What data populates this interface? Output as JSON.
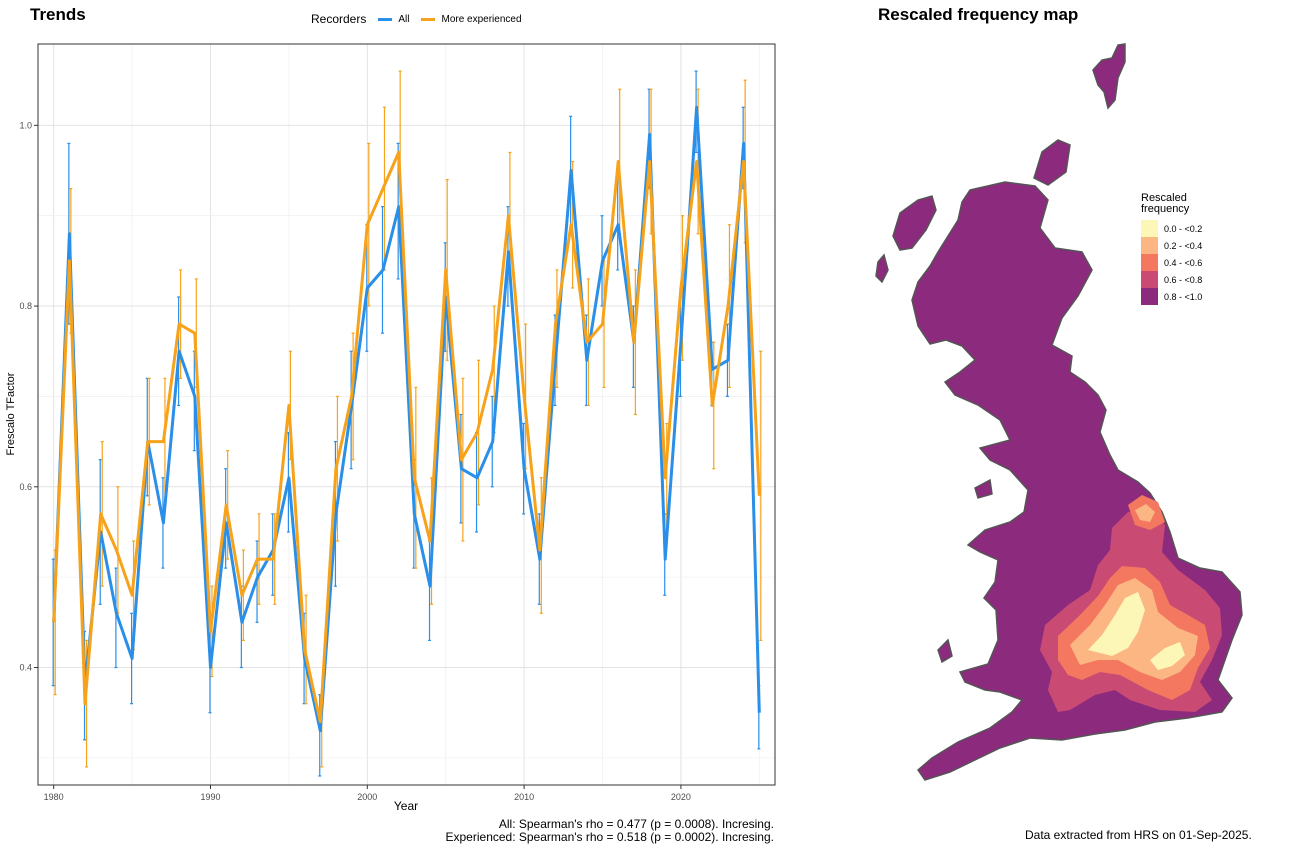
{
  "trends": {
    "title": "Trends",
    "legend_title": "Recorders",
    "caption_lines": [
      "All: Spearman's rho = 0.477 (p = 0.0008). Incresing.",
      "Experienced: Spearman's rho = 0.518 (p = 0.0002). Incresing."
    ]
  },
  "map": {
    "title": "Rescaled frequency map",
    "legend_title_lines": [
      "Rescaled",
      "frequency"
    ],
    "legend_items": [
      {
        "label": "0.0 - <0.2",
        "color": "#fcf7b6"
      },
      {
        "label": "0.2 - <0.4",
        "color": "#fcb683"
      },
      {
        "label": "0.4 - <0.6",
        "color": "#f4785f"
      },
      {
        "label": "0.6 - <0.8",
        "color": "#c94a73"
      },
      {
        "label": "0.8 - <1.0",
        "color": "#8c2a7e"
      }
    ],
    "footer": "Data extracted from HRS on 01-Sep-2025."
  },
  "chart_data": {
    "type": "line",
    "title": "Trends",
    "xlabel": "Year",
    "ylabel": "Frescalo TFactor",
    "xlim": [
      1979,
      2026
    ],
    "ylim": [
      0.27,
      1.09
    ],
    "x_ticks": [
      1980,
      1990,
      2000,
      2010,
      2020
    ],
    "y_ticks": [
      0.4,
      0.6,
      0.8,
      1.0
    ],
    "y_tick_labels": [
      "0.4",
      "0.6",
      "0.8",
      "1.0"
    ],
    "grid": true,
    "legend_position": "top",
    "series": [
      {
        "name": "All",
        "color": "#2a8fe8",
        "x": [
          1980,
          1981,
          1982,
          1983,
          1984,
          1985,
          1986,
          1987,
          1988,
          1989,
          1990,
          1991,
          1992,
          1993,
          1994,
          1995,
          1996,
          1997,
          1998,
          1999,
          2000,
          2001,
          2002,
          2003,
          2004,
          2005,
          2006,
          2007,
          2008,
          2009,
          2010,
          2011,
          2012,
          2013,
          2014,
          2015,
          2016,
          2017,
          2018,
          2019,
          2020,
          2021,
          2022,
          2023,
          2024,
          2025
        ],
        "values": [
          0.45,
          0.88,
          0.38,
          0.55,
          0.46,
          0.41,
          0.65,
          0.56,
          0.75,
          0.7,
          0.4,
          0.56,
          0.45,
          0.5,
          0.53,
          0.61,
          0.41,
          0.33,
          0.57,
          0.69,
          0.82,
          0.84,
          0.91,
          0.57,
          0.49,
          0.81,
          0.62,
          0.61,
          0.65,
          0.86,
          0.62,
          0.52,
          0.74,
          0.95,
          0.74,
          0.85,
          0.89,
          0.76,
          0.99,
          0.52,
          0.76,
          1.02,
          0.73,
          0.74,
          0.98,
          0.35
        ],
        "upper": [
          0.52,
          0.98,
          0.44,
          0.63,
          0.51,
          0.46,
          0.72,
          0.61,
          0.81,
          0.75,
          0.45,
          0.62,
          0.49,
          0.54,
          0.57,
          0.66,
          0.46,
          0.37,
          0.65,
          0.75,
          0.89,
          0.91,
          0.98,
          0.63,
          0.54,
          0.87,
          0.68,
          0.66,
          0.7,
          0.91,
          0.67,
          0.57,
          0.79,
          1.01,
          0.79,
          0.9,
          0.94,
          0.8,
          1.04,
          0.57,
          0.81,
          1.06,
          0.76,
          0.78,
          1.02,
          0.38
        ],
        "lower": [
          0.38,
          0.78,
          0.32,
          0.47,
          0.4,
          0.36,
          0.59,
          0.51,
          0.69,
          0.64,
          0.35,
          0.51,
          0.4,
          0.45,
          0.48,
          0.55,
          0.36,
          0.28,
          0.49,
          0.62,
          0.75,
          0.77,
          0.83,
          0.51,
          0.43,
          0.75,
          0.56,
          0.55,
          0.6,
          0.8,
          0.57,
          0.47,
          0.69,
          0.88,
          0.69,
          0.8,
          0.84,
          0.71,
          0.93,
          0.48,
          0.7,
          0.97,
          0.69,
          0.7,
          0.93,
          0.31
        ]
      },
      {
        "name": "More experienced",
        "color": "#f7a21b",
        "x": [
          1980,
          1981,
          1982,
          1983,
          1984,
          1985,
          1986,
          1987,
          1988,
          1989,
          1990,
          1991,
          1992,
          1993,
          1994,
          1995,
          1996,
          1997,
          1998,
          1999,
          2000,
          2001,
          2002,
          2003,
          2004,
          2005,
          2006,
          2007,
          2008,
          2009,
          2010,
          2011,
          2012,
          2013,
          2014,
          2015,
          2016,
          2017,
          2018,
          2019,
          2020,
          2021,
          2022,
          2023,
          2024,
          2025
        ],
        "values": [
          0.45,
          0.85,
          0.36,
          0.57,
          0.53,
          0.48,
          0.65,
          0.65,
          0.78,
          0.77,
          0.44,
          0.58,
          0.48,
          0.52,
          0.52,
          0.69,
          0.42,
          0.34,
          0.62,
          0.7,
          0.89,
          0.93,
          0.97,
          0.61,
          0.54,
          0.84,
          0.63,
          0.66,
          0.73,
          0.9,
          0.7,
          0.53,
          0.78,
          0.89,
          0.76,
          0.78,
          0.96,
          0.76,
          0.96,
          0.61,
          0.82,
          0.96,
          0.69,
          0.8,
          0.96,
          0.59
        ],
        "upper": [
          0.53,
          0.93,
          0.43,
          0.65,
          0.6,
          0.54,
          0.72,
          0.72,
          0.84,
          0.83,
          0.49,
          0.64,
          0.53,
          0.57,
          0.57,
          0.75,
          0.48,
          0.37,
          0.7,
          0.77,
          0.98,
          1.02,
          1.06,
          0.71,
          0.61,
          0.94,
          0.72,
          0.74,
          0.8,
          0.97,
          0.78,
          0.61,
          0.84,
          0.96,
          0.83,
          0.85,
          1.04,
          0.84,
          1.04,
          0.67,
          0.9,
          1.04,
          0.76,
          0.89,
          1.05,
          0.75
        ],
        "lower": [
          0.37,
          0.77,
          0.29,
          0.49,
          0.46,
          0.42,
          0.58,
          0.58,
          0.72,
          0.71,
          0.39,
          0.52,
          0.43,
          0.47,
          0.47,
          0.63,
          0.36,
          0.29,
          0.54,
          0.63,
          0.8,
          0.84,
          0.88,
          0.51,
          0.47,
          0.74,
          0.54,
          0.58,
          0.66,
          0.83,
          0.62,
          0.46,
          0.71,
          0.82,
          0.69,
          0.71,
          0.88,
          0.68,
          0.88,
          0.55,
          0.74,
          0.88,
          0.62,
          0.71,
          0.87,
          0.43
        ]
      }
    ]
  }
}
